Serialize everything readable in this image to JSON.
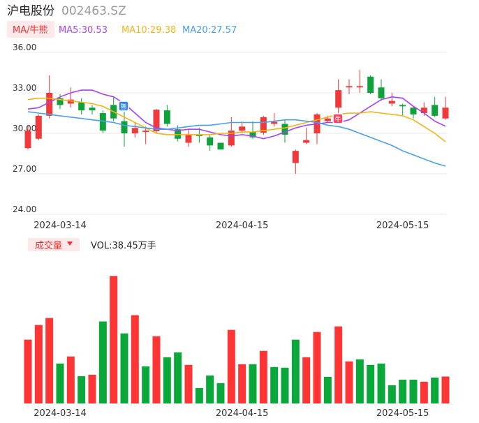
{
  "header": {
    "name": "沪电股份",
    "code": "002463.SZ"
  },
  "chart_data": [
    {
      "type": "candlestick",
      "indicator_button": "MA/牛熊",
      "categories": [
        null,
        null,
        null,
        "2024-03-14",
        null,
        null,
        null,
        null,
        null,
        null,
        null,
        null,
        null,
        null,
        null,
        null,
        null,
        null,
        null,
        null,
        "2024-04-15",
        null,
        null,
        null,
        null,
        null,
        null,
        null,
        null,
        null,
        null,
        null,
        null,
        null,
        null,
        "2024-05-15",
        null,
        null,
        null,
        null
      ],
      "open": [
        28.9,
        29.6,
        31.3,
        32.6,
        32.2,
        32.3,
        31.9,
        31.5,
        32.1,
        30.9,
        30.0,
        30.1,
        30.15,
        31.7,
        30.3,
        29.3,
        29.9,
        29.7,
        29.3,
        29.1,
        30.2,
        30.1,
        30.05,
        30.7,
        30.7,
        27.8,
        29.3,
        30.0,
        30.9,
        31.9,
        33.4,
        33.4,
        34.2,
        33.4,
        32.2,
        32.1,
        31.9,
        31.5,
        32.1,
        31.1
      ],
      "high": [
        30.6,
        31.4,
        34.3,
        32.9,
        33.4,
        32.6,
        32.1,
        31.7,
        32.7,
        31.6,
        30.8,
        30.5,
        31.8,
        32.1,
        30.6,
        30.3,
        30.4,
        29.9,
        29.3,
        31.2,
        30.9,
        30.9,
        31.3,
        31.5,
        31.0,
        28.8,
        30.4,
        31.5,
        31.3,
        34.0,
        34.0,
        34.7,
        34.3,
        34.0,
        33.0,
        32.2,
        32.0,
        32.3,
        32.7,
        32.7
      ],
      "low": [
        28.8,
        29.5,
        31.1,
        31.8,
        31.9,
        31.4,
        31.4,
        30.0,
        30.9,
        29.0,
        29.7,
        29.2,
        30.0,
        30.5,
        29.4,
        29.0,
        29.3,
        28.7,
        28.8,
        29.0,
        30.0,
        29.6,
        29.9,
        30.5,
        29.3,
        27.0,
        29.2,
        29.2,
        30.8,
        31.5,
        32.9,
        33.0,
        32.9,
        32.4,
        32.0,
        31.3,
        31.1,
        31.3,
        31.2,
        31.0
      ],
      "close": [
        30.2,
        31.3,
        33.0,
        32.1,
        32.5,
        31.7,
        31.7,
        30.2,
        31.1,
        30.0,
        30.4,
        30.2,
        31.75,
        30.7,
        29.6,
        29.9,
        29.8,
        29.1,
        28.8,
        30.2,
        30.5,
        29.7,
        31.2,
        30.85,
        29.9,
        28.7,
        29.5,
        31.4,
        31.1,
        33.2,
        33.5,
        33.5,
        33.0,
        32.6,
        32.4,
        32.0,
        31.4,
        31.9,
        31.3,
        31.9
      ],
      "up_color": "#f0393b",
      "down_color": "#0fa23a",
      "series": [
        {
          "name": "MA5:30.53",
          "color": "#a444f0",
          "values": [
            31.8,
            31.9,
            32.3,
            32.7,
            33.0,
            33.2,
            33.2,
            32.9,
            32.7,
            32.2,
            31.5,
            30.8,
            30.4,
            30.3,
            30.2,
            30.3,
            30.3,
            30.1,
            29.9,
            29.8,
            29.9,
            29.8,
            29.6,
            29.8,
            30.1,
            30.4,
            30.6,
            30.7,
            30.8,
            30.8,
            31.0,
            31.5,
            32.0,
            32.5,
            32.7,
            32.6,
            32.0,
            31.5,
            30.9,
            30.53
          ]
        },
        {
          "name": "MA10:29.38",
          "color": "#f2b418",
          "values": [
            32.5,
            32.6,
            32.6,
            32.5,
            32.4,
            32.3,
            32.2,
            32.0,
            31.6,
            31.2,
            30.8,
            30.4,
            30.0,
            29.9,
            29.9,
            29.9,
            29.9,
            29.9,
            30.0,
            30.0,
            30.1,
            30.1,
            30.2,
            30.3,
            30.4,
            30.6,
            30.8,
            31.0,
            31.2,
            31.4,
            31.5,
            31.5,
            31.6,
            31.5,
            31.4,
            31.3,
            31.0,
            30.5,
            30.0,
            29.38
          ]
        },
        {
          "name": "MA20:27.57",
          "color": "#4a9eea",
          "values": [
            31.6,
            31.5,
            31.4,
            31.3,
            31.2,
            31.1,
            31.0,
            30.9,
            30.8,
            30.6,
            30.5,
            30.4,
            30.3,
            30.3,
            30.4,
            30.5,
            30.6,
            30.6,
            30.7,
            30.8,
            30.8,
            30.8,
            30.8,
            30.9,
            31.0,
            31.0,
            30.9,
            30.8,
            30.6,
            30.5,
            30.3,
            30.0,
            29.7,
            29.4,
            29.1,
            28.7,
            28.4,
            28.1,
            27.8,
            27.57
          ]
        }
      ],
      "signals": [
        {
          "label": "熊"
        },
        {
          "label": "牛"
        }
      ],
      "ylim": [
        24,
        36
      ],
      "yticks": [
        {
          "value": 36,
          "label": "36.00"
        },
        {
          "value": 33,
          "label": "33.00"
        },
        {
          "value": 30,
          "label": "30.00"
        },
        {
          "value": 27,
          "label": "27.00"
        },
        {
          "value": 24,
          "label": "24.00"
        }
      ],
      "grid": true
    },
    {
      "type": "bar",
      "title": "成交量",
      "legend": "VOL:38.45万手",
      "values": [
        91,
        112,
        122,
        57,
        67,
        39,
        41,
        117,
        182,
        100,
        126,
        53,
        96,
        66,
        73,
        55,
        22,
        40,
        29,
        105,
        56,
        56,
        75,
        52,
        51,
        91,
        66,
        102,
        38,
        110,
        60,
        63,
        55,
        57,
        26,
        34,
        34,
        31,
        37,
        38.45
      ],
      "colors": [
        "#ff3535",
        "#ff3535",
        "#ff3535",
        "#0aa83a",
        "#ff3535",
        "#0aa83a",
        "#ff3535",
        "#0aa83a",
        "#ff3535",
        "#0aa83a",
        "#ff3535",
        "#0aa83a",
        "#ff3535",
        "#0aa83a",
        "#0aa83a",
        "#ff3535",
        "#0aa83a",
        "#0aa83a",
        "#0aa83a",
        "#ff3535",
        "#ff3535",
        "#0aa83a",
        "#ff3535",
        "#0aa83a",
        "#0aa83a",
        "#0aa83a",
        "#ff3535",
        "#ff3535",
        "#0aa83a",
        "#ff3535",
        "#ff3535",
        "#0aa83a",
        "#0aa83a",
        "#0aa83a",
        "#0aa83a",
        "#0aa83a",
        "#0aa83a",
        "#ff3535",
        "#0aa83a",
        "#ff3535"
      ]
    }
  ]
}
